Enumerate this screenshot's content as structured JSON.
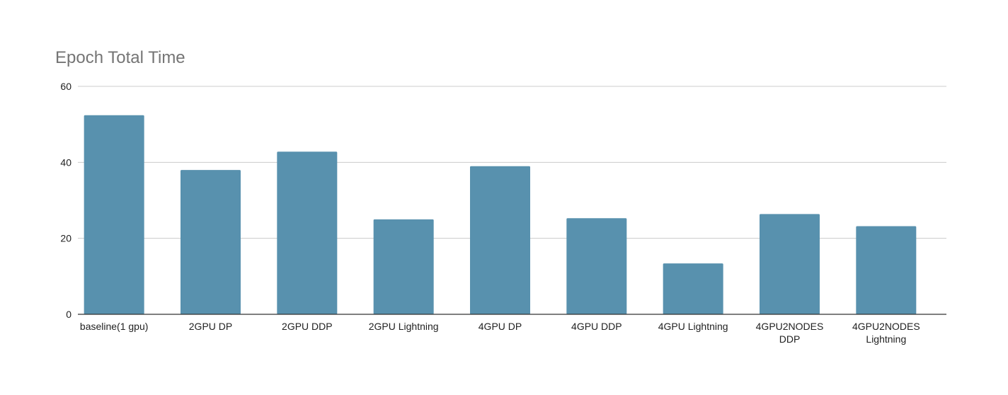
{
  "chart_data": {
    "type": "bar",
    "title": "Epoch Total Time",
    "xlabel": "",
    "ylabel": "",
    "categories": [
      [
        "baseline(1 gpu)"
      ],
      [
        "2GPU DP"
      ],
      [
        "2GPU DDP"
      ],
      [
        "2GPU Lightning"
      ],
      [
        "4GPU DP"
      ],
      [
        "4GPU DDP"
      ],
      [
        "4GPU Lightning"
      ],
      [
        "4GPU2NODES",
        "DDP"
      ],
      [
        "4GPU2NODES",
        "Lightning"
      ]
    ],
    "values": [
      52.4,
      38,
      42.8,
      25,
      39,
      25.3,
      13.4,
      26.4,
      23.2
    ],
    "ylim": [
      0,
      60
    ],
    "yticks": [
      0,
      20,
      40,
      60
    ],
    "grid": true,
    "legend": "none",
    "bar_color": "#5891ae",
    "grid_color": "#cccccc",
    "axis_color": "#333333",
    "tick_label_color": "#222222",
    "title_color": "#757575"
  }
}
